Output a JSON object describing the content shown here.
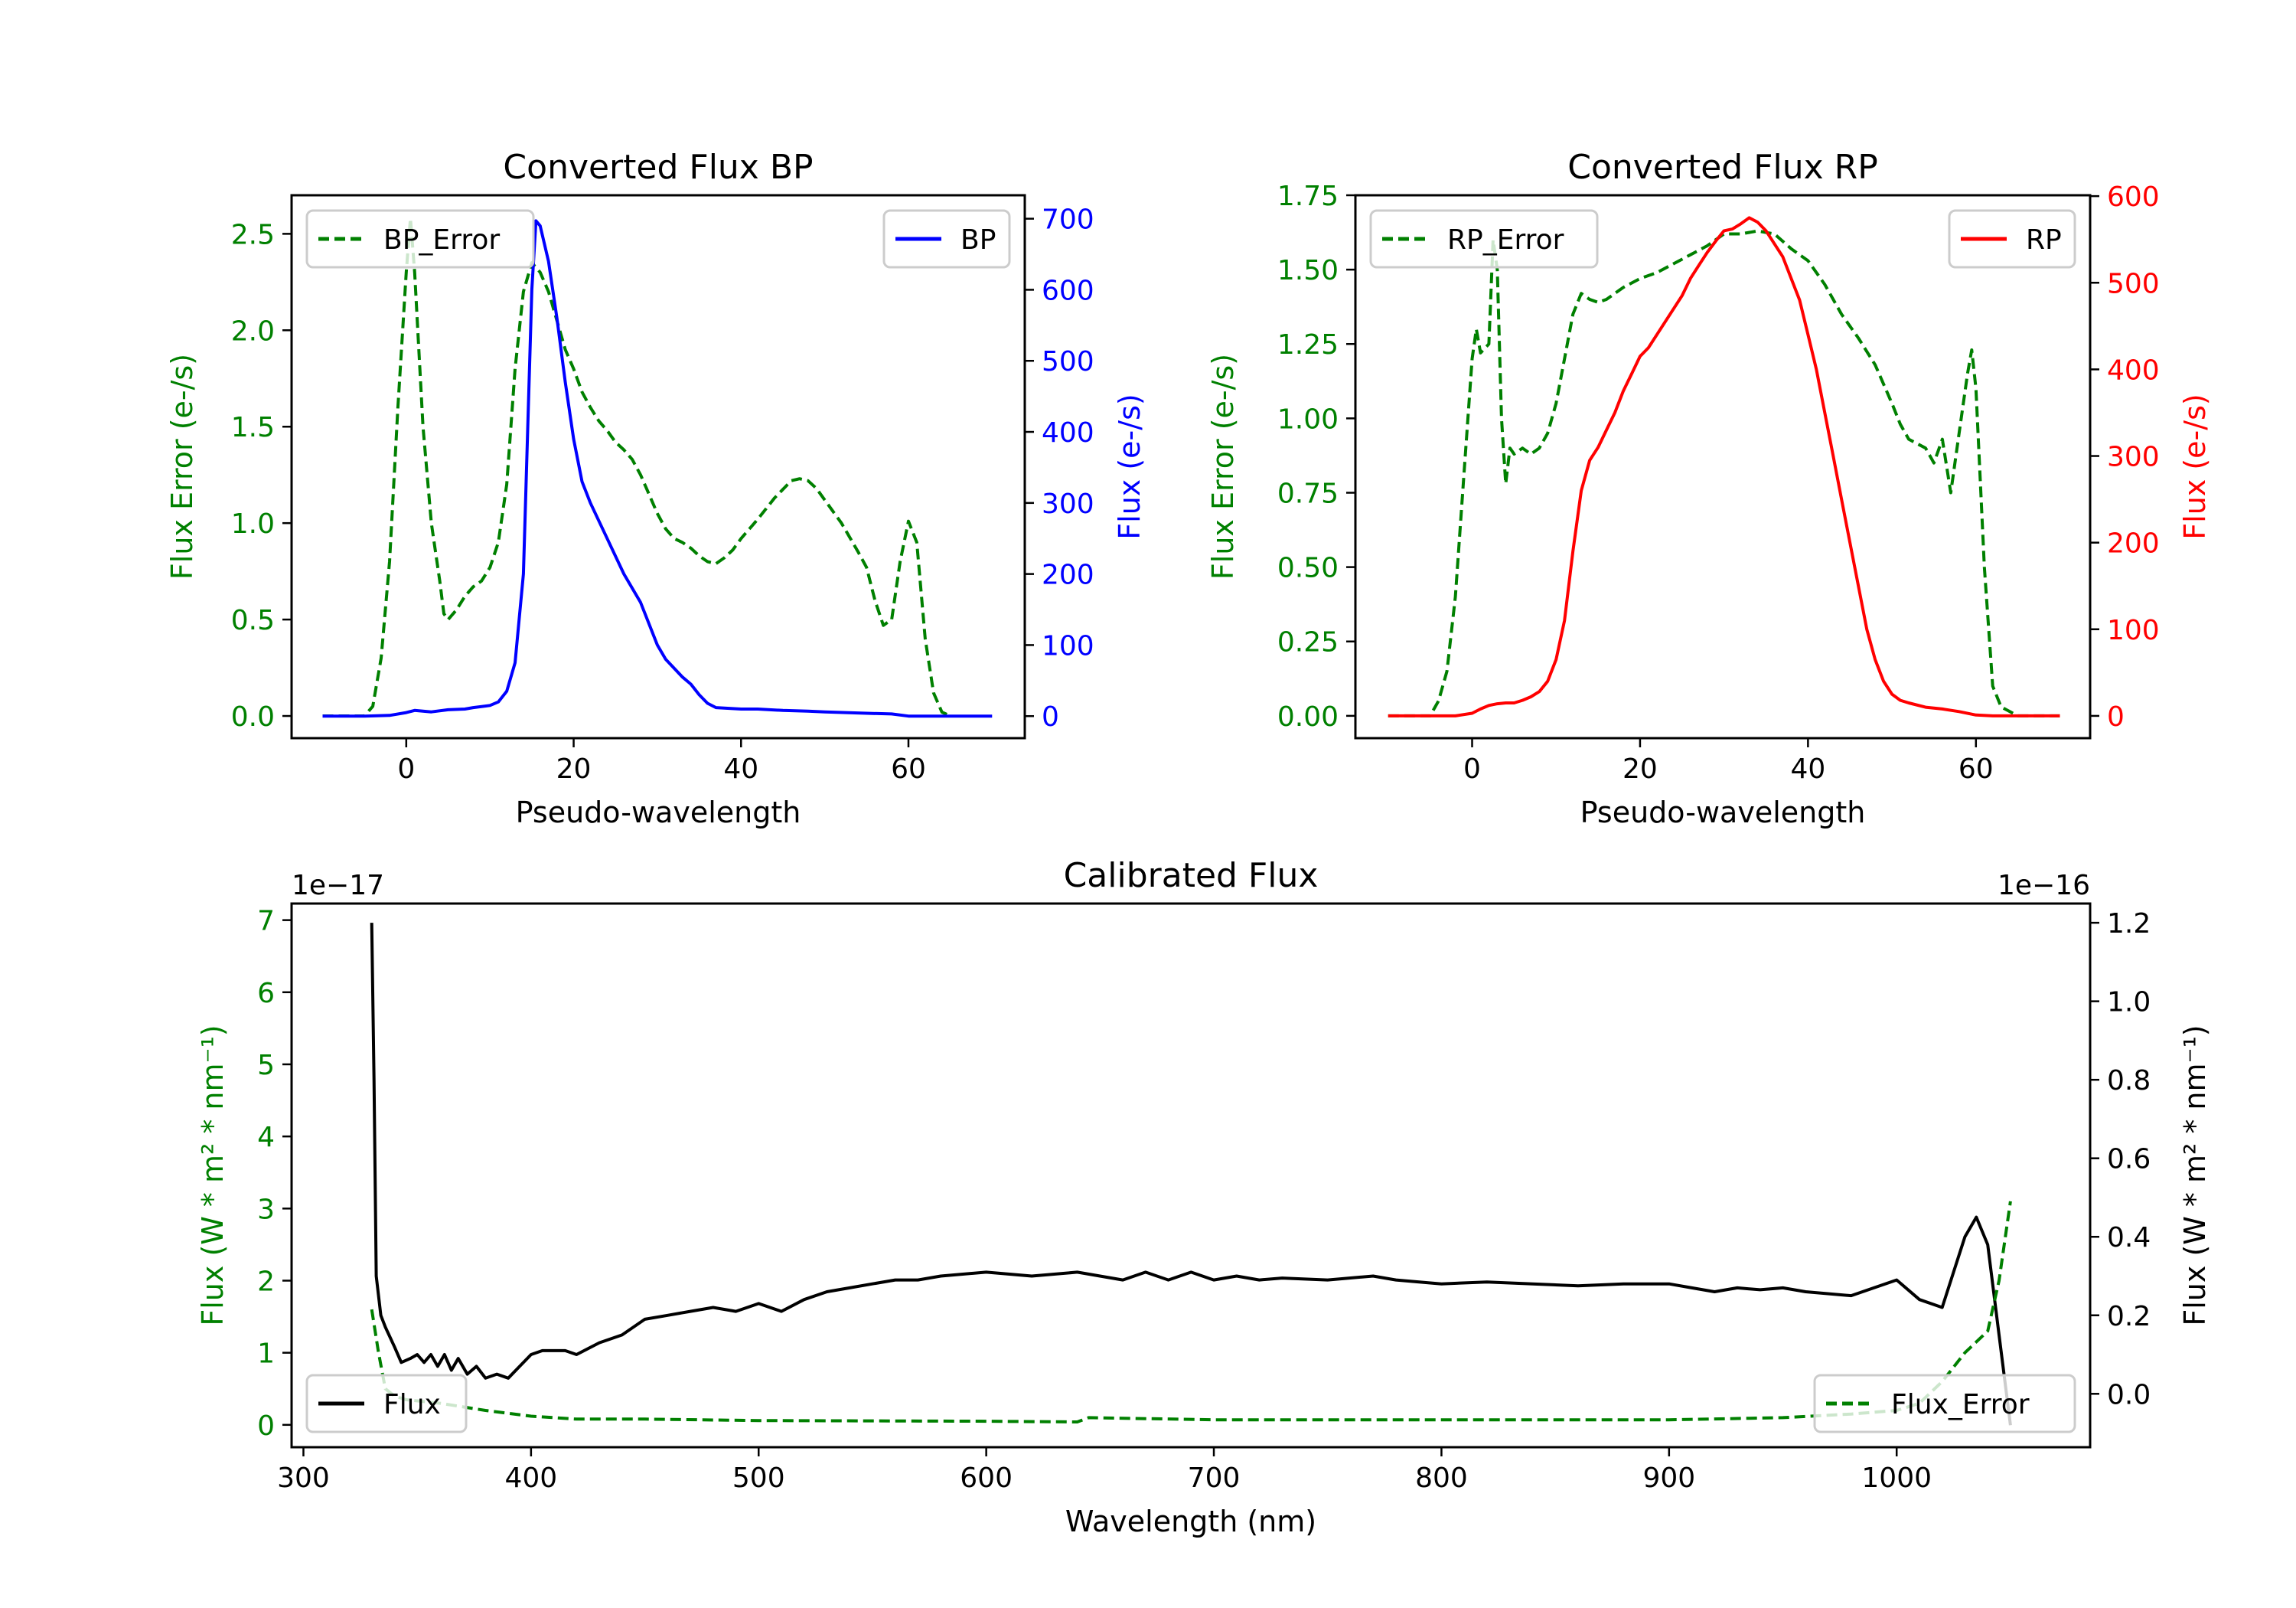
{
  "chart_data": [
    {
      "type": "line",
      "title": "Converted Flux BP",
      "xlabel": "Pseudo-wavelength",
      "ylabel_left": "Flux Error (e-/s)",
      "ylabel_right": "Flux (e-/s)",
      "xlim": [
        -13.7,
        73.9
      ],
      "ylim_left": [
        -0.115,
        2.7
      ],
      "ylim_right": [
        -31,
        733
      ],
      "xticks": [
        0,
        20,
        40,
        60
      ],
      "yticks_left": [
        "0.0",
        "0.5",
        "1.0",
        "1.5",
        "2.0",
        "2.5"
      ],
      "yticks_right": [
        "0",
        "100",
        "200",
        "300",
        "400",
        "500",
        "600",
        "700"
      ],
      "left_color": "#008000",
      "right_color": "#0000ff",
      "legend_left": {
        "label": "BP_Error",
        "placement": "upper-left"
      },
      "legend_right": {
        "label": "BP",
        "placement": "upper-right"
      },
      "series_left": {
        "name": "BP_Error",
        "color": "#008000",
        "style": "dashed",
        "x": [
          -10,
          -5,
          -4,
          -3,
          -2,
          -1,
          0,
          0.5,
          1,
          2,
          3,
          4,
          4.5,
          5,
          6,
          7,
          8,
          9,
          10,
          11,
          12,
          13,
          14,
          15,
          16,
          17,
          18,
          19,
          20,
          21,
          22,
          23,
          24,
          25,
          26,
          27,
          28,
          29,
          30,
          31,
          32,
          33,
          34,
          35,
          36,
          37,
          38,
          39,
          40,
          42,
          44,
          46,
          47,
          48,
          49,
          50,
          52,
          54,
          55,
          56,
          57,
          58,
          59,
          60,
          61,
          62,
          63,
          64,
          65
        ],
        "y": [
          0,
          0,
          0.05,
          0.3,
          0.8,
          1.6,
          2.3,
          2.58,
          2.3,
          1.5,
          1.0,
          0.7,
          0.53,
          0.5,
          0.55,
          0.62,
          0.67,
          0.7,
          0.77,
          0.9,
          1.2,
          1.8,
          2.2,
          2.35,
          2.3,
          2.2,
          2.05,
          1.9,
          1.8,
          1.68,
          1.6,
          1.53,
          1.48,
          1.42,
          1.38,
          1.33,
          1.25,
          1.15,
          1.05,
          0.97,
          0.92,
          0.9,
          0.87,
          0.83,
          0.8,
          0.79,
          0.82,
          0.86,
          0.92,
          1.02,
          1.13,
          1.22,
          1.23,
          1.22,
          1.18,
          1.12,
          1.0,
          0.85,
          0.77,
          0.6,
          0.47,
          0.5,
          0.8,
          1.01,
          0.9,
          0.4,
          0.12,
          0.02,
          0
        ]
      },
      "series_right": {
        "name": "BP",
        "color": "#0000ff",
        "style": "solid",
        "x": [
          -10,
          -5,
          -2,
          0,
          1,
          3,
          5,
          7,
          8,
          10,
          11,
          12,
          13,
          14,
          14.5,
          15,
          15.5,
          16,
          17,
          18,
          19,
          20,
          21,
          22,
          24,
          26,
          28,
          30,
          31,
          33,
          34,
          35,
          36,
          37,
          40,
          42,
          45,
          48,
          50,
          55,
          58,
          60,
          62,
          70
        ],
        "y": [
          0,
          0,
          1,
          5,
          8,
          6,
          9,
          10,
          12,
          15,
          20,
          35,
          75,
          200,
          400,
          600,
          697,
          690,
          640,
          560,
          470,
          390,
          330,
          300,
          250,
          200,
          160,
          100,
          80,
          55,
          45,
          30,
          18,
          12,
          10,
          10,
          8,
          7,
          6,
          4,
          3,
          0,
          0,
          0
        ]
      }
    },
    {
      "type": "line",
      "title": "Converted Flux RP",
      "xlabel": "Pseudo-wavelength",
      "ylabel_left": "Flux Error (e-/s)",
      "ylabel_right": "Flux (e-/s)",
      "xlim": [
        -13.9,
        73.6
      ],
      "ylim_left": [
        -0.075,
        1.75
      ],
      "ylim_right": [
        -25.7,
        601
      ],
      "xticks": [
        0,
        20,
        40,
        60
      ],
      "yticks_left": [
        "0.00",
        "0.25",
        "0.50",
        "0.75",
        "1.00",
        "1.25",
        "1.50",
        "1.75"
      ],
      "yticks_right": [
        "0",
        "100",
        "200",
        "300",
        "400",
        "500",
        "600"
      ],
      "left_color": "#008000",
      "right_color": "#ff0000",
      "legend_left": {
        "label": "RP_Error",
        "placement": "upper-left"
      },
      "legend_right": {
        "label": "RP",
        "placement": "upper-right"
      },
      "series_left": {
        "name": "RP_Error",
        "color": "#008000",
        "style": "dashed",
        "x": [
          -10,
          -5,
          -4,
          -3,
          -2,
          -1,
          0,
          0.5,
          1,
          2,
          2.5,
          3,
          3.5,
          4,
          4.5,
          5,
          6,
          7,
          8,
          9,
          10,
          11,
          12,
          13,
          14,
          15,
          16,
          17,
          18,
          20,
          22,
          24,
          26,
          28,
          30,
          32,
          34,
          36,
          38,
          40,
          42,
          44,
          46,
          48,
          50,
          51,
          52,
          54,
          55,
          56,
          57,
          58,
          59,
          59.5,
          60,
          61,
          62,
          63,
          65,
          70
        ],
        "y": [
          0,
          0,
          0.05,
          0.15,
          0.4,
          0.8,
          1.2,
          1.3,
          1.22,
          1.25,
          1.6,
          1.5,
          1.0,
          0.78,
          0.9,
          0.88,
          0.9,
          0.88,
          0.9,
          0.95,
          1.05,
          1.2,
          1.35,
          1.42,
          1.4,
          1.39,
          1.4,
          1.42,
          1.44,
          1.47,
          1.49,
          1.52,
          1.55,
          1.58,
          1.62,
          1.62,
          1.63,
          1.62,
          1.57,
          1.53,
          1.45,
          1.35,
          1.27,
          1.18,
          1.05,
          0.98,
          0.93,
          0.9,
          0.85,
          0.93,
          0.75,
          0.95,
          1.15,
          1.23,
          1.1,
          0.5,
          0.1,
          0.03,
          0,
          0
        ]
      },
      "series_right": {
        "name": "RP",
        "color": "#ff0000",
        "style": "solid",
        "x": [
          -10,
          -2,
          0,
          1,
          2,
          3,
          4,
          5,
          6,
          7,
          8,
          9,
          10,
          11,
          12,
          13,
          14,
          15,
          16,
          17,
          18,
          19,
          20,
          21,
          22,
          23,
          24,
          25,
          26,
          27,
          28,
          29,
          30,
          31,
          32,
          33,
          34,
          35,
          36,
          37,
          38,
          39,
          40,
          41,
          42,
          43,
          44,
          45,
          46,
          47,
          48,
          49,
          50,
          51,
          52,
          54,
          56,
          58,
          60,
          62,
          70
        ],
        "y": [
          0,
          0,
          3,
          8,
          12,
          14,
          15,
          15,
          18,
          22,
          28,
          40,
          65,
          110,
          190,
          260,
          295,
          310,
          330,
          350,
          375,
          395,
          415,
          425,
          440,
          455,
          470,
          485,
          505,
          520,
          535,
          548,
          560,
          562,
          568,
          575,
          570,
          560,
          545,
          530,
          505,
          480,
          440,
          400,
          350,
          300,
          250,
          200,
          150,
          100,
          65,
          40,
          25,
          18,
          15,
          10,
          8,
          5,
          1,
          0,
          0
        ]
      }
    },
    {
      "type": "line",
      "title": "Calibrated Flux",
      "xlabel": "Wavelength (nm)",
      "ylabel_left": "Flux (W * m² * nm⁻¹)",
      "ylabel_right": "Flux (W * m² * nm⁻¹)",
      "offset_left": "1e−17",
      "offset_right": "1e−16",
      "xlim": [
        294.8,
        1085
      ],
      "ylim_left": [
        -0.31,
        7.23
      ],
      "ylim_right": [
        -0.136,
        1.249
      ],
      "xticks": [
        300,
        400,
        500,
        600,
        700,
        800,
        900,
        1000
      ],
      "yticks_left": [
        "0",
        "1",
        "2",
        "3",
        "4",
        "5",
        "6",
        "7"
      ],
      "yticks_right": [
        "0.0",
        "0.2",
        "0.4",
        "0.6",
        "0.8",
        "1.0",
        "1.2"
      ],
      "left_color": "#008000",
      "right_color": "#000000",
      "legend_left": {
        "label": "Flux",
        "placement": "lower-left"
      },
      "legend_right": {
        "label": "Flux_Error",
        "placement": "lower-right"
      },
      "series_left": {
        "name": "Flux_Error",
        "color": "#008000",
        "style": "dashed",
        "x": [
          330,
          333,
          336,
          340,
          345,
          360,
          380,
          400,
          420,
          450,
          500,
          600,
          640,
          645,
          700,
          800,
          900,
          950,
          980,
          1000,
          1010,
          1020,
          1030,
          1040,
          1045,
          1050
        ],
        "y": [
          1.6,
          1.0,
          0.5,
          0.4,
          0.35,
          0.3,
          0.2,
          0.12,
          0.08,
          0.08,
          0.06,
          0.05,
          0.04,
          0.1,
          0.07,
          0.07,
          0.07,
          0.1,
          0.15,
          0.2,
          0.3,
          0.6,
          1.0,
          1.3,
          2.0,
          3.1
        ]
      },
      "series_right": {
        "name": "Flux",
        "color": "#000000",
        "style": "solid",
        "x": [
          330,
          331,
          332,
          334,
          336,
          340,
          343,
          347,
          350,
          353,
          356,
          359,
          362,
          365,
          368,
          372,
          376,
          380,
          385,
          390,
          395,
          400,
          405,
          415,
          420,
          430,
          440,
          450,
          460,
          470,
          480,
          490,
          500,
          510,
          520,
          530,
          540,
          550,
          560,
          570,
          580,
          600,
          620,
          640,
          650,
          660,
          670,
          680,
          690,
          700,
          710,
          720,
          730,
          750,
          770,
          780,
          800,
          820,
          840,
          860,
          880,
          900,
          910,
          920,
          930,
          940,
          950,
          960,
          980,
          1000,
          1010,
          1020,
          1030,
          1035,
          1040,
          1045,
          1050
        ],
        "y": [
          1.2,
          0.8,
          0.3,
          0.2,
          0.17,
          0.12,
          0.08,
          0.09,
          0.1,
          0.08,
          0.1,
          0.07,
          0.1,
          0.06,
          0.09,
          0.05,
          0.07,
          0.04,
          0.05,
          0.04,
          0.07,
          0.1,
          0.11,
          0.11,
          0.1,
          0.13,
          0.15,
          0.19,
          0.2,
          0.21,
          0.22,
          0.21,
          0.23,
          0.21,
          0.24,
          0.26,
          0.27,
          0.28,
          0.29,
          0.29,
          0.3,
          0.31,
          0.3,
          0.31,
          0.3,
          0.29,
          0.31,
          0.29,
          0.31,
          0.29,
          0.3,
          0.29,
          0.295,
          0.29,
          0.3,
          0.29,
          0.28,
          0.285,
          0.28,
          0.275,
          0.28,
          0.28,
          0.27,
          0.26,
          0.27,
          0.265,
          0.27,
          0.26,
          0.25,
          0.29,
          0.24,
          0.22,
          0.4,
          0.45,
          0.38,
          0.15,
          -0.08
        ]
      }
    }
  ]
}
